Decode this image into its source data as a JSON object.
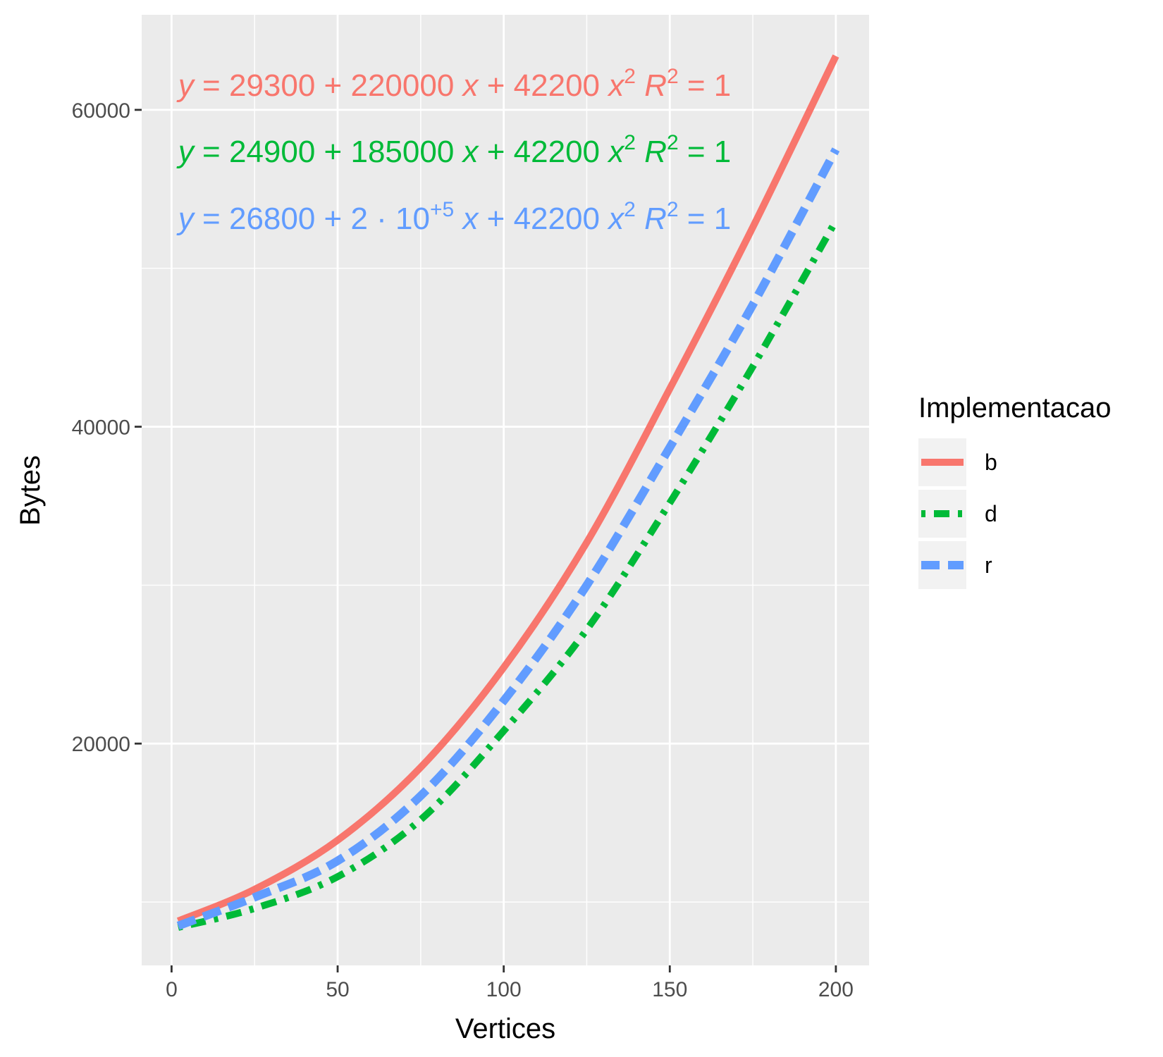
{
  "chart_data": {
    "type": "line",
    "xlabel": "Vertices",
    "ylabel": "Bytes",
    "xlim": [
      -9,
      210
    ],
    "ylim": [
      6000,
      66000
    ],
    "x_ticks": [
      0,
      50,
      100,
      150,
      200
    ],
    "x_tick_labels": [
      "0",
      "50",
      "100",
      "150",
      "200"
    ],
    "y_ticks": [
      20000,
      40000,
      60000
    ],
    "y_tick_labels": [
      "20000",
      "40000",
      "60000"
    ],
    "x_minor_ticks": [
      25,
      75,
      125,
      175
    ],
    "y_minor_ticks": [
      10000,
      30000,
      50000
    ],
    "grid": true,
    "legend": {
      "title": "Implementacao",
      "position": "right",
      "entries": [
        "b",
        "d",
        "r"
      ]
    },
    "series": [
      {
        "name": "b",
        "color": "#F8766D",
        "linetype": "solid",
        "x": [
          2,
          25,
          50,
          75,
          100,
          125,
          150,
          175,
          200
        ],
        "y": [
          8800,
          10800,
          13900,
          18500,
          24800,
          32700,
          42400,
          52600,
          63400
        ]
      },
      {
        "name": "d",
        "color": "#00BA38",
        "linetype": "dotdash",
        "x": [
          2,
          25,
          50,
          75,
          100,
          125,
          150,
          175,
          200
        ],
        "y": [
          8400,
          9600,
          11600,
          15200,
          20800,
          27200,
          35200,
          43800,
          53000
        ]
      },
      {
        "name": "r",
        "color": "#619CFF",
        "linetype": "dashed",
        "x": [
          2,
          25,
          50,
          75,
          100,
          125,
          150,
          175,
          200
        ],
        "y": [
          8500,
          10300,
          12600,
          16700,
          22700,
          30000,
          38700,
          47700,
          57500
        ]
      }
    ],
    "annotations": [
      {
        "series": "b",
        "color": "#F8766D",
        "parts": [
          {
            "text": "y",
            "style": "italic"
          },
          {
            "text": " = 29300 + 220000 "
          },
          {
            "text": "x",
            "style": "italic"
          },
          {
            "text": " + 42200 "
          },
          {
            "text": "x",
            "style": "italic"
          },
          {
            "text": "2",
            "style": "sup"
          },
          {
            "text": "    "
          },
          {
            "text": "R",
            "style": "italic"
          },
          {
            "text": "2",
            "style": "sup"
          },
          {
            "text": " = 1"
          }
        ]
      },
      {
        "series": "d",
        "color": "#00BA38",
        "parts": [
          {
            "text": "y",
            "style": "italic"
          },
          {
            "text": " = 24900 + 185000 "
          },
          {
            "text": "x",
            "style": "italic"
          },
          {
            "text": " + 42200 "
          },
          {
            "text": "x",
            "style": "italic"
          },
          {
            "text": "2",
            "style": "sup"
          },
          {
            "text": "    "
          },
          {
            "text": "R",
            "style": "italic"
          },
          {
            "text": "2",
            "style": "sup"
          },
          {
            "text": " = 1"
          }
        ]
      },
      {
        "series": "r",
        "color": "#619CFF",
        "parts": [
          {
            "text": "y",
            "style": "italic"
          },
          {
            "text": " = 26800 + 2 · 10"
          },
          {
            "text": "+5",
            "style": "sup"
          },
          {
            "text": " "
          },
          {
            "text": "x",
            "style": "italic"
          },
          {
            "text": " + 42200 "
          },
          {
            "text": "x",
            "style": "italic"
          },
          {
            "text": "2",
            "style": "sup"
          },
          {
            "text": "    "
          },
          {
            "text": "R",
            "style": "italic"
          },
          {
            "text": "2",
            "style": "sup"
          },
          {
            "text": " = 1"
          }
        ]
      }
    ]
  }
}
